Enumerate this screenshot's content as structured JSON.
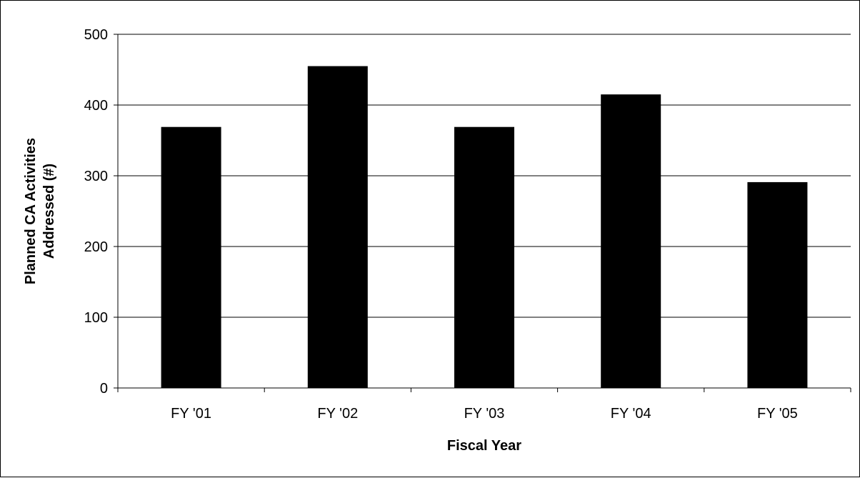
{
  "chart_data": {
    "type": "bar",
    "title": "",
    "xlabel": "Fiscal Year",
    "ylabel_lines": [
      "Planned CA Activities",
      "Addressed (#)"
    ],
    "categories": [
      "FY '01",
      "FY '02",
      "FY '03",
      "FY '04",
      "FY '05"
    ],
    "values": [
      369,
      455,
      369,
      415,
      291
    ],
    "ylim": [
      0,
      500
    ],
    "yticks": [
      0,
      100,
      200,
      300,
      400,
      500
    ],
    "grid": true,
    "legend": "none",
    "colors": {
      "bar": "#000000",
      "grid": "#000000",
      "axis": "#000000",
      "background": "#ffffff"
    }
  }
}
